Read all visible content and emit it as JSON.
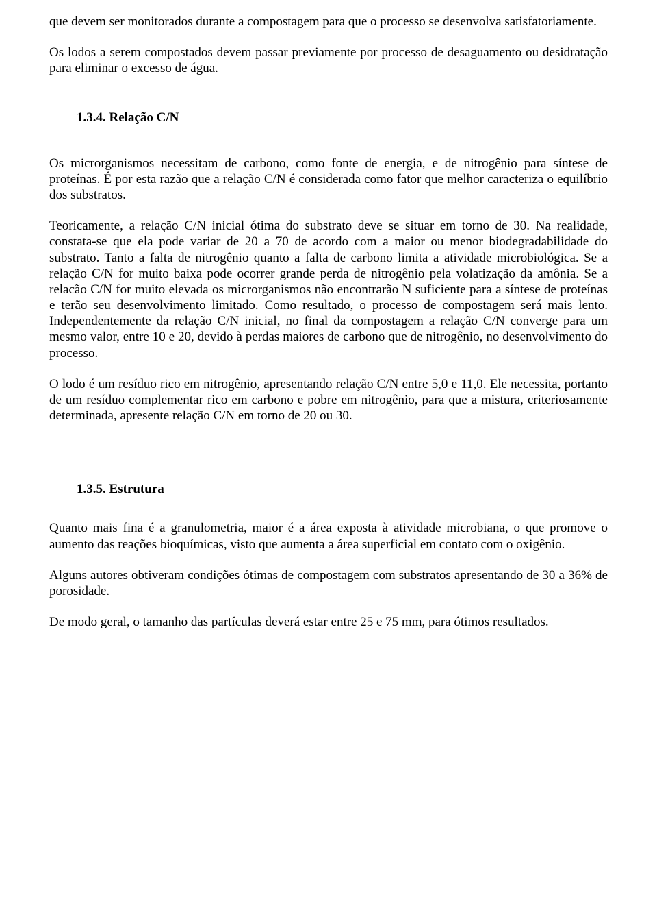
{
  "paragraphs": {
    "p1": "que devem ser monitorados durante a compostagem para que o processo se desenvolva satisfatoriamente.",
    "p2": "Os lodos a serem compostados devem passar previamente por processo de desaguamento ou desidratação para eliminar o excesso de água.",
    "h1": "1.3.4. Relação C/N",
    "p3": "Os microrganismos necessitam de carbono, como fonte de energia, e de nitrogênio para síntese de proteínas. É por esta razão que a relação C/N é considerada como fator que melhor caracteriza o equilíbrio dos substratos.",
    "p4": "Teoricamente, a relação C/N inicial ótima do substrato deve se situar em torno de 30. Na realidade, constata-se que ela pode variar de 20 a 70 de acordo com a maior ou menor biodegradabilidade do substrato. Tanto a falta de nitrogênio quanto a falta de carbono limita  a atividade microbiológica. Se a relação C/N for muito baixa pode ocorrer grande perda de nitrogênio pela volatização da amônia. Se a relacão C/N for muito elevada os microrganismos não encontrarão N suficiente para a síntese de proteínas e terão seu desenvolvimento limitado. Como resultado, o processo de compostagem será mais lento. Independentemente da relação C/N inicial, no final da compostagem a relação C/N converge para um mesmo valor, entre 10 e 20, devido à perdas maiores de carbono que de nitrogênio, no desenvolvimento do processo.",
    "p5": "O lodo é um resíduo rico em nitrogênio, apresentando relação C/N entre 5,0 e 11,0. Ele necessita, portanto de um resíduo complementar rico em carbono e pobre em nitrogênio, para que a mistura, criteriosamente determinada, apresente relação C/N em torno de 20 ou 30.",
    "h2": "1.3.5. Estrutura",
    "p6": "Quanto mais fina é a granulometria, maior é a área exposta à atividade microbiana, o que promove o aumento das reações bioquímicas, visto que aumenta a área superficial em contato com o oxigênio.",
    "p7": "Alguns autores obtiveram condições ótimas de compostagem com substratos apresentando de 30 a 36% de porosidade.",
    "p8": "De modo geral, o tamanho das partículas deverá estar entre 25 e 75 mm, para ótimos resultados."
  }
}
